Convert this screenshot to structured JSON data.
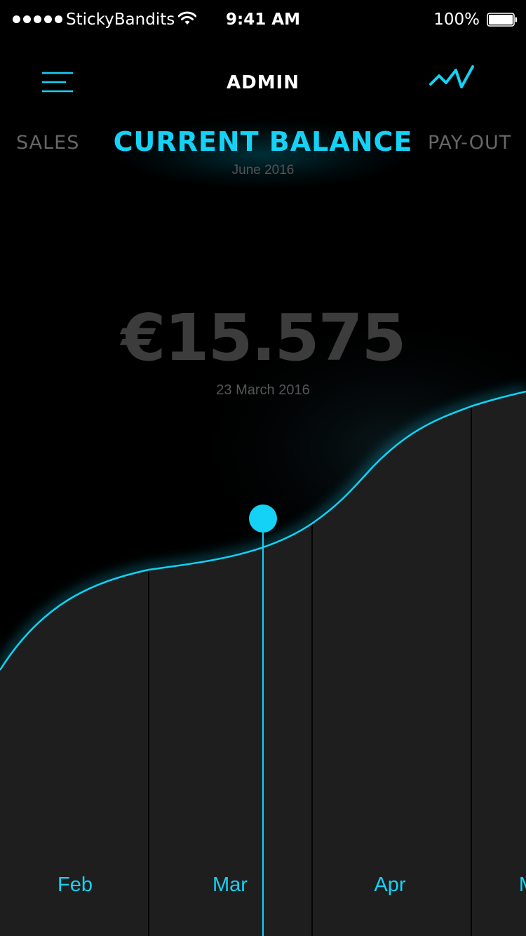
{
  "status_bar": {
    "carrier": "StickyBandits",
    "time": "9:41 AM",
    "battery": "100%",
    "battery_level": 1.0,
    "signal_icon": "signal-dots-icon",
    "wifi_icon": "wifi-icon"
  },
  "nav": {
    "title": "ADMIN",
    "menu_icon": "hamburger-menu-icon",
    "chart_icon": "line-chart-icon"
  },
  "tabs": {
    "left": "SALES",
    "active": "CURRENT BALANCE",
    "right": "PAY-OUT",
    "active_date": "June 2016"
  },
  "balance": {
    "amount": "€15.575",
    "date": "23 March 2016"
  },
  "colors": {
    "accent": "#14d2f5",
    "background": "#000000",
    "chart_fill": "#1e1e1e",
    "muted_text": "#555555"
  },
  "chart_data": {
    "type": "area",
    "x": [
      "Feb",
      "Mar",
      "Apr",
      "M"
    ],
    "selected_x": "Mar",
    "grid": true,
    "xlabel": "",
    "ylabel": ""
  }
}
